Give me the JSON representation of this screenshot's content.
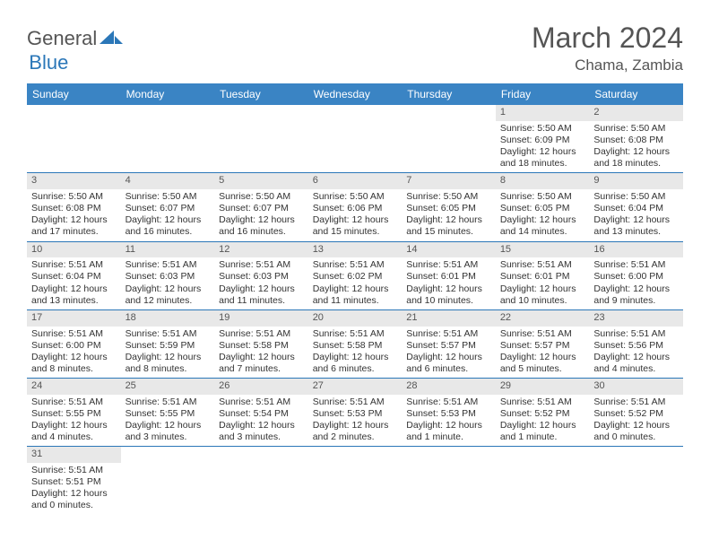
{
  "logo": {
    "text1": "General",
    "text2": "Blue"
  },
  "title": "March 2024",
  "location": "Chama, Zambia",
  "colors": {
    "header_bg": "#3a84c4",
    "row_divider": "#2b77b8",
    "daynum_bg": "#e8e8e8",
    "logo_blue": "#2b77b8",
    "text_gray": "#555555"
  },
  "weekdays": [
    "Sunday",
    "Monday",
    "Tuesday",
    "Wednesday",
    "Thursday",
    "Friday",
    "Saturday"
  ],
  "weeks": [
    [
      null,
      null,
      null,
      null,
      null,
      {
        "n": "1",
        "sunrise": "Sunrise: 5:50 AM",
        "sunset": "Sunset: 6:09 PM",
        "day1": "Daylight: 12 hours",
        "day2": "and 18 minutes."
      },
      {
        "n": "2",
        "sunrise": "Sunrise: 5:50 AM",
        "sunset": "Sunset: 6:08 PM",
        "day1": "Daylight: 12 hours",
        "day2": "and 18 minutes."
      }
    ],
    [
      {
        "n": "3",
        "sunrise": "Sunrise: 5:50 AM",
        "sunset": "Sunset: 6:08 PM",
        "day1": "Daylight: 12 hours",
        "day2": "and 17 minutes."
      },
      {
        "n": "4",
        "sunrise": "Sunrise: 5:50 AM",
        "sunset": "Sunset: 6:07 PM",
        "day1": "Daylight: 12 hours",
        "day2": "and 16 minutes."
      },
      {
        "n": "5",
        "sunrise": "Sunrise: 5:50 AM",
        "sunset": "Sunset: 6:07 PM",
        "day1": "Daylight: 12 hours",
        "day2": "and 16 minutes."
      },
      {
        "n": "6",
        "sunrise": "Sunrise: 5:50 AM",
        "sunset": "Sunset: 6:06 PM",
        "day1": "Daylight: 12 hours",
        "day2": "and 15 minutes."
      },
      {
        "n": "7",
        "sunrise": "Sunrise: 5:50 AM",
        "sunset": "Sunset: 6:05 PM",
        "day1": "Daylight: 12 hours",
        "day2": "and 15 minutes."
      },
      {
        "n": "8",
        "sunrise": "Sunrise: 5:50 AM",
        "sunset": "Sunset: 6:05 PM",
        "day1": "Daylight: 12 hours",
        "day2": "and 14 minutes."
      },
      {
        "n": "9",
        "sunrise": "Sunrise: 5:50 AM",
        "sunset": "Sunset: 6:04 PM",
        "day1": "Daylight: 12 hours",
        "day2": "and 13 minutes."
      }
    ],
    [
      {
        "n": "10",
        "sunrise": "Sunrise: 5:51 AM",
        "sunset": "Sunset: 6:04 PM",
        "day1": "Daylight: 12 hours",
        "day2": "and 13 minutes."
      },
      {
        "n": "11",
        "sunrise": "Sunrise: 5:51 AM",
        "sunset": "Sunset: 6:03 PM",
        "day1": "Daylight: 12 hours",
        "day2": "and 12 minutes."
      },
      {
        "n": "12",
        "sunrise": "Sunrise: 5:51 AM",
        "sunset": "Sunset: 6:03 PM",
        "day1": "Daylight: 12 hours",
        "day2": "and 11 minutes."
      },
      {
        "n": "13",
        "sunrise": "Sunrise: 5:51 AM",
        "sunset": "Sunset: 6:02 PM",
        "day1": "Daylight: 12 hours",
        "day2": "and 11 minutes."
      },
      {
        "n": "14",
        "sunrise": "Sunrise: 5:51 AM",
        "sunset": "Sunset: 6:01 PM",
        "day1": "Daylight: 12 hours",
        "day2": "and 10 minutes."
      },
      {
        "n": "15",
        "sunrise": "Sunrise: 5:51 AM",
        "sunset": "Sunset: 6:01 PM",
        "day1": "Daylight: 12 hours",
        "day2": "and 10 minutes."
      },
      {
        "n": "16",
        "sunrise": "Sunrise: 5:51 AM",
        "sunset": "Sunset: 6:00 PM",
        "day1": "Daylight: 12 hours",
        "day2": "and 9 minutes."
      }
    ],
    [
      {
        "n": "17",
        "sunrise": "Sunrise: 5:51 AM",
        "sunset": "Sunset: 6:00 PM",
        "day1": "Daylight: 12 hours",
        "day2": "and 8 minutes."
      },
      {
        "n": "18",
        "sunrise": "Sunrise: 5:51 AM",
        "sunset": "Sunset: 5:59 PM",
        "day1": "Daylight: 12 hours",
        "day2": "and 8 minutes."
      },
      {
        "n": "19",
        "sunrise": "Sunrise: 5:51 AM",
        "sunset": "Sunset: 5:58 PM",
        "day1": "Daylight: 12 hours",
        "day2": "and 7 minutes."
      },
      {
        "n": "20",
        "sunrise": "Sunrise: 5:51 AM",
        "sunset": "Sunset: 5:58 PM",
        "day1": "Daylight: 12 hours",
        "day2": "and 6 minutes."
      },
      {
        "n": "21",
        "sunrise": "Sunrise: 5:51 AM",
        "sunset": "Sunset: 5:57 PM",
        "day1": "Daylight: 12 hours",
        "day2": "and 6 minutes."
      },
      {
        "n": "22",
        "sunrise": "Sunrise: 5:51 AM",
        "sunset": "Sunset: 5:57 PM",
        "day1": "Daylight: 12 hours",
        "day2": "and 5 minutes."
      },
      {
        "n": "23",
        "sunrise": "Sunrise: 5:51 AM",
        "sunset": "Sunset: 5:56 PM",
        "day1": "Daylight: 12 hours",
        "day2": "and 4 minutes."
      }
    ],
    [
      {
        "n": "24",
        "sunrise": "Sunrise: 5:51 AM",
        "sunset": "Sunset: 5:55 PM",
        "day1": "Daylight: 12 hours",
        "day2": "and 4 minutes."
      },
      {
        "n": "25",
        "sunrise": "Sunrise: 5:51 AM",
        "sunset": "Sunset: 5:55 PM",
        "day1": "Daylight: 12 hours",
        "day2": "and 3 minutes."
      },
      {
        "n": "26",
        "sunrise": "Sunrise: 5:51 AM",
        "sunset": "Sunset: 5:54 PM",
        "day1": "Daylight: 12 hours",
        "day2": "and 3 minutes."
      },
      {
        "n": "27",
        "sunrise": "Sunrise: 5:51 AM",
        "sunset": "Sunset: 5:53 PM",
        "day1": "Daylight: 12 hours",
        "day2": "and 2 minutes."
      },
      {
        "n": "28",
        "sunrise": "Sunrise: 5:51 AM",
        "sunset": "Sunset: 5:53 PM",
        "day1": "Daylight: 12 hours",
        "day2": "and 1 minute."
      },
      {
        "n": "29",
        "sunrise": "Sunrise: 5:51 AM",
        "sunset": "Sunset: 5:52 PM",
        "day1": "Daylight: 12 hours",
        "day2": "and 1 minute."
      },
      {
        "n": "30",
        "sunrise": "Sunrise: 5:51 AM",
        "sunset": "Sunset: 5:52 PM",
        "day1": "Daylight: 12 hours",
        "day2": "and 0 minutes."
      }
    ],
    [
      {
        "n": "31",
        "sunrise": "Sunrise: 5:51 AM",
        "sunset": "Sunset: 5:51 PM",
        "day1": "Daylight: 12 hours",
        "day2": "and 0 minutes."
      },
      null,
      null,
      null,
      null,
      null,
      null
    ]
  ]
}
